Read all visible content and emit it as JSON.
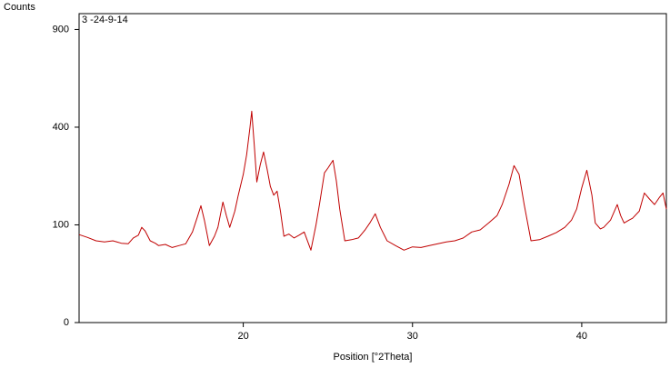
{
  "chart_data": {
    "type": "line",
    "y_axis_title": "Counts",
    "sample_label": "3 -24-9-14",
    "x_axis_title": "Position [°2Theta]",
    "yscale": "sqrt",
    "xlim": [
      10.3,
      45
    ],
    "ylim": [
      0,
      1000
    ],
    "xticks": [
      20,
      30,
      40
    ],
    "yticks": [
      0,
      100,
      400,
      900
    ],
    "series": [
      {
        "name": "3 -24-9-14",
        "color": "#c00000",
        "x": [
          10.3,
          10.8,
          11.3,
          11.8,
          12.3,
          12.8,
          13.2,
          13.5,
          13.8,
          14.0,
          14.2,
          14.5,
          14.8,
          15.0,
          15.4,
          15.8,
          16.2,
          16.6,
          17.0,
          17.3,
          17.5,
          17.7,
          18.0,
          18.3,
          18.5,
          18.8,
          19.0,
          19.2,
          19.5,
          19.7,
          20.0,
          20.2,
          20.4,
          20.5,
          20.65,
          20.8,
          21.0,
          21.2,
          21.4,
          21.6,
          21.8,
          22.0,
          22.2,
          22.4,
          22.7,
          23.0,
          23.3,
          23.6,
          24.0,
          24.3,
          24.5,
          24.8,
          25.0,
          25.3,
          25.5,
          25.7,
          26.0,
          26.4,
          26.8,
          27.2,
          27.5,
          27.8,
          28.1,
          28.5,
          29.0,
          29.5,
          30.0,
          30.5,
          31.0,
          31.5,
          32.0,
          32.5,
          33.0,
          33.5,
          34.0,
          34.5,
          35.0,
          35.3,
          35.7,
          36.0,
          36.3,
          36.6,
          37.0,
          37.5,
          38.0,
          38.5,
          39.0,
          39.4,
          39.7,
          40.0,
          40.3,
          40.6,
          40.8,
          41.1,
          41.3,
          41.7,
          42.1,
          42.3,
          42.5,
          42.8,
          43.0,
          43.4,
          43.7,
          44.0,
          44.3,
          44.6,
          44.8,
          45.0
        ],
        "values": [
          81,
          76,
          70,
          68,
          70,
          66,
          65,
          75,
          80,
          95,
          88,
          70,
          66,
          62,
          64,
          59,
          62,
          65,
          86,
          118,
          143,
          110,
          62,
          78,
          95,
          152,
          120,
          95,
          130,
          169,
          230,
          295,
          400,
          468,
          330,
          207,
          260,
          305,
          250,
          194,
          170,
          181,
          130,
          78,
          82,
          75,
          80,
          86,
          55,
          100,
          146,
          235,
          250,
          276,
          210,
          135,
          70,
          72,
          75,
          90,
          105,
          124,
          95,
          70,
          62,
          55,
          60,
          59,
          62,
          65,
          68,
          70,
          75,
          86,
          90,
          104,
          120,
          146,
          200,
          258,
          230,
          146,
          70,
          72,
          78,
          85,
          95,
          110,
          135,
          190,
          243,
          170,
          104,
          92,
          95,
          110,
          146,
          120,
          104,
          110,
          114,
          130,
          176,
          160,
          146,
          165,
          176,
          135
        ]
      }
    ]
  }
}
